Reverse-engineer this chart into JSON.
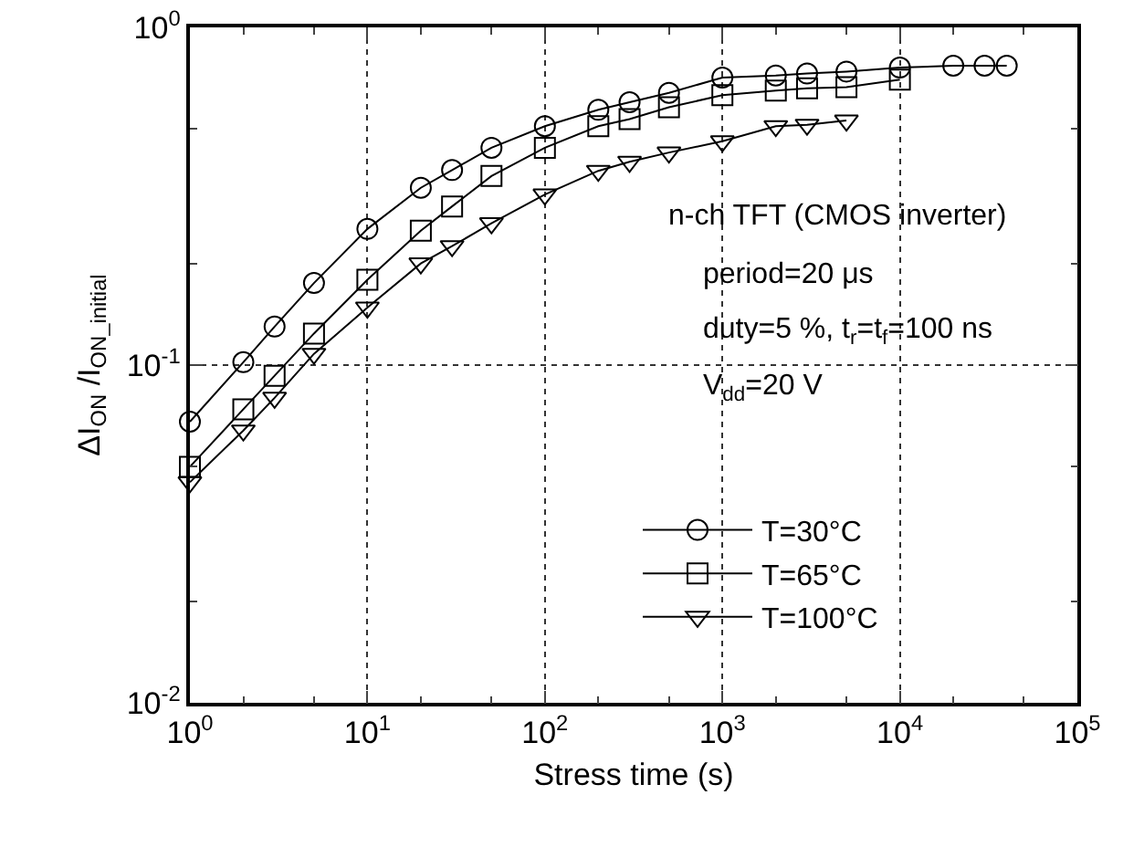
{
  "chart_data": {
    "type": "line",
    "xlabel": "Stress time (s)",
    "ylabel": "ΔI$_{ON}$ /I$_{ON_initial}$",
    "log": "xy",
    "grid": true,
    "line_style": "solid",
    "legend": "bottom right",
    "xlim": [
      1,
      100000
    ],
    "ylim": [
      0.01,
      1
    ],
    "xticks": [
      {
        "value": 1,
        "label": "10$^{0}$"
      },
      {
        "value": 10,
        "label": "10$^{1}$"
      },
      {
        "value": 100,
        "label": "10$^{2}$"
      },
      {
        "value": 1000,
        "label": "10$^{3}$"
      },
      {
        "value": 10000,
        "label": "10$^{4}$"
      },
      {
        "value": 100000,
        "label": "10$^{5}$"
      }
    ],
    "yticks": [
      {
        "value": 0.01,
        "label": "10$^{-2}$"
      },
      {
        "value": 0.1,
        "label": "10$^{-1}$"
      },
      {
        "value": 1,
        "label": "10$^{0}$"
      }
    ],
    "annotations": [
      "n-ch TFT (CMOS inverter)",
      "period=20 μs",
      "duty=5 %, t$_{r}$=t$_{f}$=100 ns",
      "V$_{dd}$=20 V"
    ],
    "series": [
      {
        "name": "T=30°C",
        "color": "#000000",
        "marker": "circle",
        "x": [
          1,
          2,
          3,
          5,
          10,
          20,
          30,
          50,
          100,
          200,
          300,
          500,
          1000,
          2000,
          3000,
          5000,
          10000,
          20000,
          30000,
          40000
        ],
        "values": [
          0.068,
          0.102,
          0.13,
          0.175,
          0.253,
          0.335,
          0.378,
          0.44,
          0.51,
          0.57,
          0.6,
          0.64,
          0.71,
          0.72,
          0.73,
          0.74,
          0.76,
          0.77,
          0.77,
          0.77
        ]
      },
      {
        "name": "T=65°C",
        "color": "#000000",
        "marker": "square",
        "x": [
          1,
          2,
          3,
          5,
          10,
          20,
          30,
          50,
          100,
          200,
          300,
          500,
          1000,
          2000,
          3000,
          5000,
          10000
        ],
        "values": [
          0.05,
          0.074,
          0.093,
          0.124,
          0.179,
          0.25,
          0.295,
          0.363,
          0.44,
          0.51,
          0.535,
          0.58,
          0.63,
          0.65,
          0.66,
          0.665,
          0.7
        ]
      },
      {
        "name": "T=100°C",
        "color": "#000000",
        "marker": "triangle",
        "x": [
          1,
          2,
          3,
          5,
          10,
          20,
          30,
          50,
          100,
          200,
          300,
          500,
          1000,
          2000,
          3000,
          5000
        ],
        "values": [
          0.045,
          0.064,
          0.08,
          0.108,
          0.148,
          0.2,
          0.225,
          0.263,
          0.32,
          0.376,
          0.4,
          0.426,
          0.46,
          0.51,
          0.515,
          0.53
        ]
      }
    ]
  }
}
